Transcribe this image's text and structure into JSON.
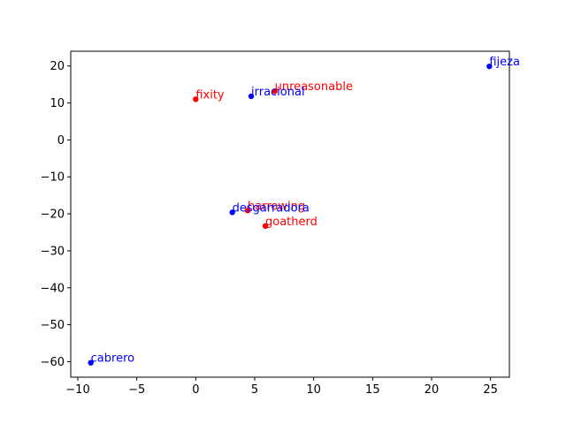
{
  "chart_data": {
    "type": "scatter",
    "title": "",
    "xlabel": "",
    "ylabel": "",
    "xlim": [
      -10.6,
      26.6
    ],
    "ylim": [
      -64.2,
      24.0
    ],
    "xticks": [
      -10,
      -5,
      0,
      5,
      10,
      15,
      20,
      25
    ],
    "yticks": [
      -60,
      -50,
      -40,
      -30,
      -20,
      -10,
      0,
      10,
      20
    ],
    "grid": false,
    "colors": {
      "blue": "#0000ff",
      "red": "#ff0000"
    },
    "points": [
      {
        "label": "fijeza",
        "x": 24.9,
        "y": 19.9,
        "color": "#0000ff"
      },
      {
        "label": "unreasonable",
        "x": 6.7,
        "y": 13.2,
        "color": "#ff0000"
      },
      {
        "label": "irracional",
        "x": 4.7,
        "y": 11.8,
        "color": "#0000ff"
      },
      {
        "label": "fixity",
        "x": 0.0,
        "y": 11.0,
        "color": "#ff0000"
      },
      {
        "label": "harrowing",
        "x": 4.4,
        "y": -19.1,
        "color": "#ff0000"
      },
      {
        "label": "desgarradora",
        "x": 3.1,
        "y": -19.6,
        "color": "#0000ff"
      },
      {
        "label": "goatherd",
        "x": 5.9,
        "y": -23.3,
        "color": "#ff0000"
      },
      {
        "label": "cabrero",
        "x": -8.9,
        "y": -60.3,
        "color": "#0000ff"
      }
    ]
  }
}
